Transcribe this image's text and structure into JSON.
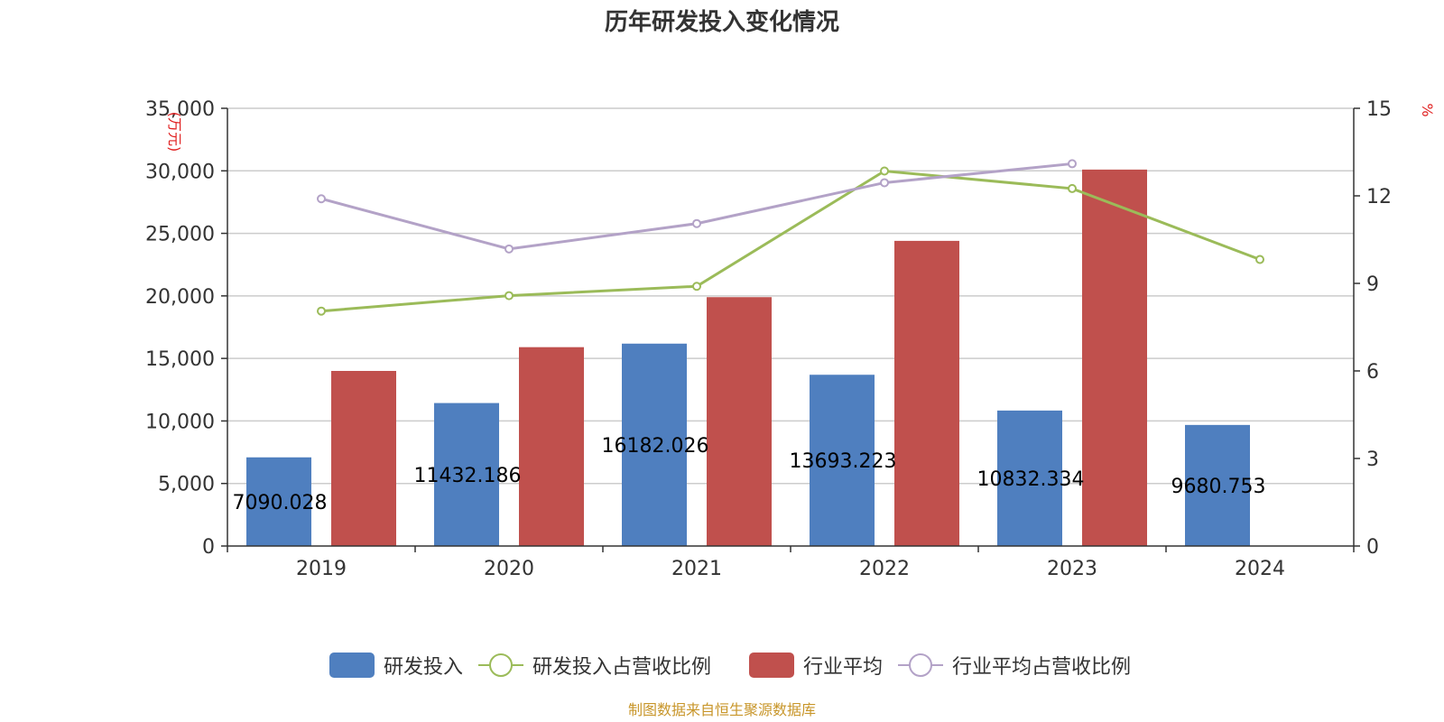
{
  "chart_data": {
    "type": "bar",
    "title": "历年研发投入变化情况",
    "categories": [
      "2019",
      "2020",
      "2021",
      "2022",
      "2023",
      "2024"
    ],
    "y_left": {
      "unit": "(万元)",
      "ylim": [
        0,
        35000
      ],
      "ticks": [
        "0",
        "5,000",
        "10,000",
        "15,000",
        "20,000",
        "25,000",
        "30,000",
        "35,000"
      ],
      "tick_values": [
        0,
        5000,
        10000,
        15000,
        20000,
        25000,
        30000,
        35000
      ]
    },
    "y_right": {
      "unit": "%",
      "ylim": [
        0,
        15
      ],
      "ticks": [
        "0",
        "3",
        "6",
        "9",
        "12",
        "15"
      ],
      "tick_values": [
        0,
        3,
        6,
        9,
        12,
        15
      ]
    },
    "series": [
      {
        "name": "研发投入",
        "type": "bar",
        "axis": "left",
        "color": "#4f7fbf",
        "values": [
          7090.028,
          11432.186,
          16182.026,
          13693.223,
          10832.334,
          9680.753
        ],
        "labels": [
          "7090.028",
          "11432.186",
          "16182.026",
          "13693.223",
          "10832.334",
          "9680.753"
        ]
      },
      {
        "name": "行业平均",
        "type": "bar",
        "axis": "left",
        "color": "#c0504d",
        "values": [
          14000,
          15900,
          19900,
          24400,
          30100,
          null
        ]
      },
      {
        "name": "研发投入占营收比例",
        "type": "line",
        "axis": "right",
        "color": "#9bbb59",
        "values": [
          8.05,
          8.58,
          8.9,
          12.85,
          12.25,
          9.82
        ]
      },
      {
        "name": "行业平均占营收比例",
        "type": "line",
        "axis": "right",
        "color": "#b3a2c7",
        "values": [
          11.9,
          10.18,
          11.05,
          12.45,
          13.1,
          null
        ]
      }
    ],
    "legend": {
      "position": "bottom",
      "items": [
        "研发投入",
        "研发投入占营收比例",
        "行业平均",
        "行业平均占营收比例"
      ]
    },
    "grid": true,
    "source": "制图数据来自恒生聚源数据库"
  }
}
